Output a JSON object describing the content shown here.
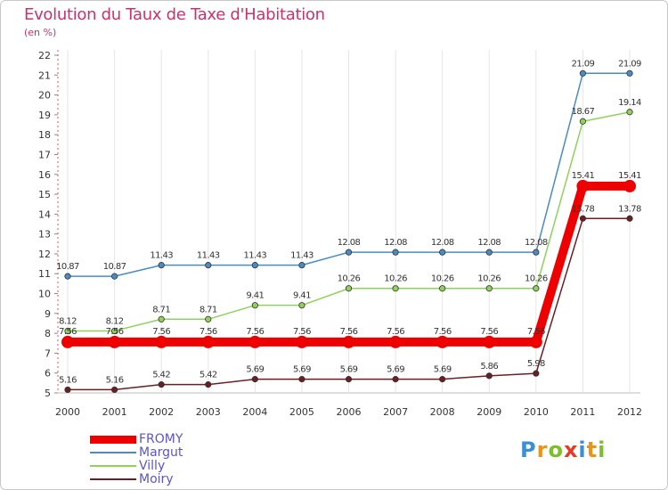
{
  "title": "Evolution du Taux de Taxe d'Habitation",
  "unit_label": "(en %)",
  "logo": {
    "text": "Proxiti",
    "letters": [
      {
        "char": "P",
        "color": "#3a8fd6"
      },
      {
        "char": "r",
        "color": "#e8941a"
      },
      {
        "char": "o",
        "color": "#7bbf2a"
      },
      {
        "char": "x",
        "color": "#e83a2a"
      },
      {
        "char": "i",
        "color": "#3a8fd6"
      },
      {
        "char": "t",
        "color": "#e8941a"
      },
      {
        "char": "i",
        "color": "#7bbf2a"
      }
    ]
  },
  "chart_data": {
    "type": "line",
    "title": "Evolution du Taux de Taxe d'Habitation",
    "ylabel": "(en %)",
    "xlabel": "",
    "categories": [
      "2000",
      "2001",
      "2002",
      "2003",
      "2004",
      "2005",
      "2006",
      "2007",
      "2008",
      "2009",
      "2010",
      "2011",
      "2012"
    ],
    "ylim": [
      5,
      22
    ],
    "yticks": [
      5,
      6,
      7,
      8,
      9,
      10,
      11,
      12,
      13,
      14,
      15,
      16,
      17,
      18,
      19,
      20,
      21,
      22
    ],
    "grid": "vertical",
    "legend_position": "bottom-left",
    "series": [
      {
        "name": "FROMY",
        "color": "#ee0000",
        "emphasis": true,
        "values": [
          7.56,
          7.56,
          7.56,
          7.56,
          7.56,
          7.56,
          7.56,
          7.56,
          7.56,
          7.56,
          7.56,
          15.41,
          15.41
        ],
        "labels": [
          "7.56",
          "7.56",
          "7.56",
          "7.56",
          "7.56",
          "7.56",
          "7.56",
          "7.56",
          "7.56",
          "7.56",
          "7.56",
          "15.41",
          "15.41"
        ]
      },
      {
        "name": "Margut",
        "color": "#4a8bc2",
        "values": [
          10.87,
          10.87,
          11.43,
          11.43,
          11.43,
          11.43,
          12.08,
          12.08,
          12.08,
          12.08,
          12.08,
          21.09,
          21.09
        ],
        "labels": [
          "10.87",
          "10.87",
          "11.43",
          "11.43",
          "11.43",
          "11.43",
          "12.08",
          "12.08",
          "12.08",
          "12.08",
          "12.08",
          "21.09",
          "21.09"
        ]
      },
      {
        "name": "Villy",
        "color": "#8fd15a",
        "values": [
          8.12,
          8.12,
          8.71,
          8.71,
          9.41,
          9.41,
          10.26,
          10.26,
          10.26,
          10.26,
          10.26,
          18.67,
          19.14
        ],
        "labels": [
          "8.12",
          "8.12",
          "8.71",
          "8.71",
          "9.41",
          "9.41",
          "10.26",
          "10.26",
          "10.26",
          "10.26",
          "10.26",
          "18.67",
          "19.14"
        ]
      },
      {
        "name": "Moiry",
        "color": "#6b1e24",
        "values": [
          5.16,
          5.16,
          5.42,
          5.42,
          5.69,
          5.69,
          5.69,
          5.69,
          5.69,
          5.86,
          5.98,
          13.78,
          13.78
        ],
        "labels": [
          "5.16",
          "5.16",
          "5.42",
          "5.42",
          "5.69",
          "5.69",
          "5.69",
          "5.69",
          "5.69",
          "5.86",
          "5.98",
          "13.78",
          "13.78"
        ]
      }
    ]
  }
}
